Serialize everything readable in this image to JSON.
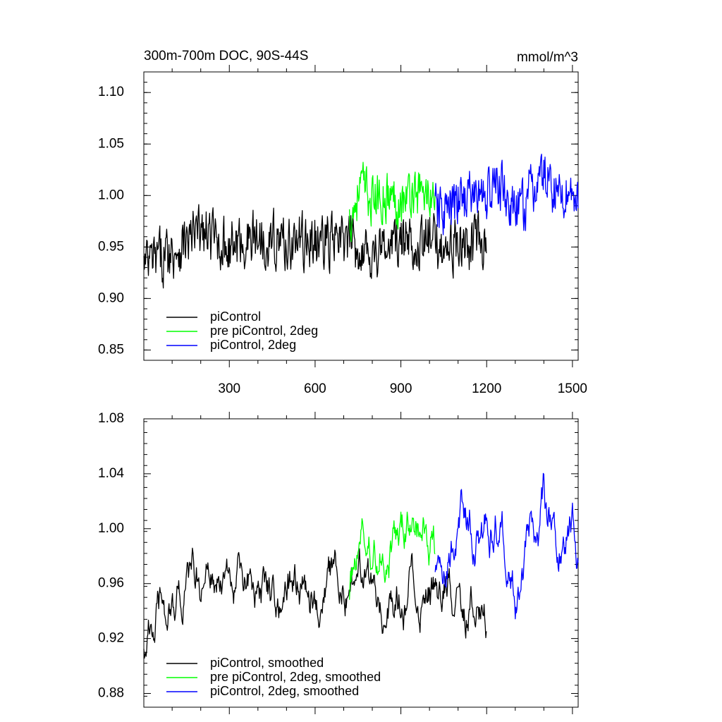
{
  "chart_data": [
    {
      "type": "line",
      "title_left": "300m-700m DOC, 90S-44S",
      "title_right": "mmol/m^3",
      "xlim": [
        1,
        1520
      ],
      "ylim": [
        0.84,
        1.12
      ],
      "x_ticks": [
        300,
        600,
        900,
        1200,
        1500
      ],
      "y_ticks": [
        0.85,
        0.9,
        0.95,
        1.0,
        1.05,
        1.1
      ],
      "y_tick_labels": [
        "0.85",
        "0.90",
        "0.95",
        "1.00",
        "1.05",
        "1.10"
      ],
      "grid": false,
      "legend_position": "bottom-left",
      "series": [
        {
          "name": "piControl",
          "color": "#000000",
          "x_start": 1,
          "x_end": 1200,
          "keypoints": [
            [
              1,
              0.93
            ],
            [
              60,
              0.94
            ],
            [
              120,
              0.95
            ],
            [
              200,
              0.965
            ],
            [
              300,
              0.95
            ],
            [
              400,
              0.96
            ],
            [
              500,
              0.955
            ],
            [
              600,
              0.955
            ],
            [
              700,
              0.955
            ],
            [
              800,
              0.945
            ],
            [
              900,
              0.955
            ],
            [
              1000,
              0.955
            ],
            [
              1100,
              0.95
            ],
            [
              1200,
              0.955
            ]
          ],
          "amplitude": 0.028
        },
        {
          "name": "pre piControl, 2deg",
          "color": "#00ff00",
          "x_start": 720,
          "x_end": 1020,
          "keypoints": [
            [
              720,
              0.975
            ],
            [
              760,
              1.01
            ],
            [
              800,
              0.995
            ],
            [
              850,
              1.0
            ],
            [
              900,
              0.995
            ],
            [
              950,
              1.005
            ],
            [
              1000,
              1.0
            ],
            [
              1020,
              0.995
            ]
          ],
          "amplitude": 0.025
        },
        {
          "name": "piControl, 2deg",
          "color": "#0000ff",
          "x_start": 1020,
          "x_end": 1520,
          "keypoints": [
            [
              1020,
              0.985
            ],
            [
              1080,
              0.985
            ],
            [
              1120,
              1.0
            ],
            [
              1180,
              1.0
            ],
            [
              1250,
              1.01
            ],
            [
              1300,
              0.98
            ],
            [
              1350,
              1.0
            ],
            [
              1400,
              1.02
            ],
            [
              1450,
              1.0
            ],
            [
              1500,
              1.005
            ],
            [
              1520,
              0.99
            ]
          ],
          "amplitude": 0.027
        }
      ]
    },
    {
      "type": "line",
      "xlim": [
        1,
        1520
      ],
      "ylim": [
        0.87,
        1.08
      ],
      "x_ticks": [
        300,
        600,
        900,
        1200,
        1500
      ],
      "y_ticks": [
        0.88,
        0.92,
        0.96,
        1.0,
        1.04,
        1.08
      ],
      "y_tick_labels": [
        "0.88",
        "0.92",
        "0.96",
        "1.00",
        "1.04",
        "1.08"
      ],
      "grid": false,
      "legend_position": "bottom-left",
      "series": [
        {
          "name": "piControl, smoothed",
          "color": "#000000",
          "x_start": 1,
          "x_end": 1200,
          "keypoints": [
            [
              1,
              0.92
            ],
            [
              60,
              0.94
            ],
            [
              120,
              0.95
            ],
            [
              200,
              0.965
            ],
            [
              300,
              0.955
            ],
            [
              400,
              0.96
            ],
            [
              500,
              0.958
            ],
            [
              600,
              0.96
            ],
            [
              700,
              0.96
            ],
            [
              800,
              0.95
            ],
            [
              900,
              0.955
            ],
            [
              1000,
              0.955
            ],
            [
              1100,
              0.955
            ],
            [
              1200,
              0.935
            ]
          ],
          "amplitude": 0.02
        },
        {
          "name": "pre piControl, 2deg, smoothed",
          "color": "#00ff00",
          "x_start": 720,
          "x_end": 1020,
          "keypoints": [
            [
              720,
              0.955
            ],
            [
              760,
              1.0
            ],
            [
              800,
              0.985
            ],
            [
              850,
              0.995
            ],
            [
              900,
              0.99
            ],
            [
              950,
              1.0
            ],
            [
              1000,
              0.995
            ],
            [
              1020,
              0.99
            ]
          ],
          "amplitude": 0.02
        },
        {
          "name": "piControl, 2deg, smoothed",
          "color": "#0000ff",
          "x_start": 1020,
          "x_end": 1520,
          "keypoints": [
            [
              1020,
              0.975
            ],
            [
              1080,
              0.985
            ],
            [
              1120,
              1.01
            ],
            [
              1180,
              1.0
            ],
            [
              1250,
              1.015
            ],
            [
              1300,
              0.96
            ],
            [
              1350,
              0.995
            ],
            [
              1400,
              1.02
            ],
            [
              1450,
              1.0
            ],
            [
              1500,
              1.01
            ],
            [
              1520,
              0.99
            ]
          ],
          "amplitude": 0.022
        }
      ]
    }
  ]
}
